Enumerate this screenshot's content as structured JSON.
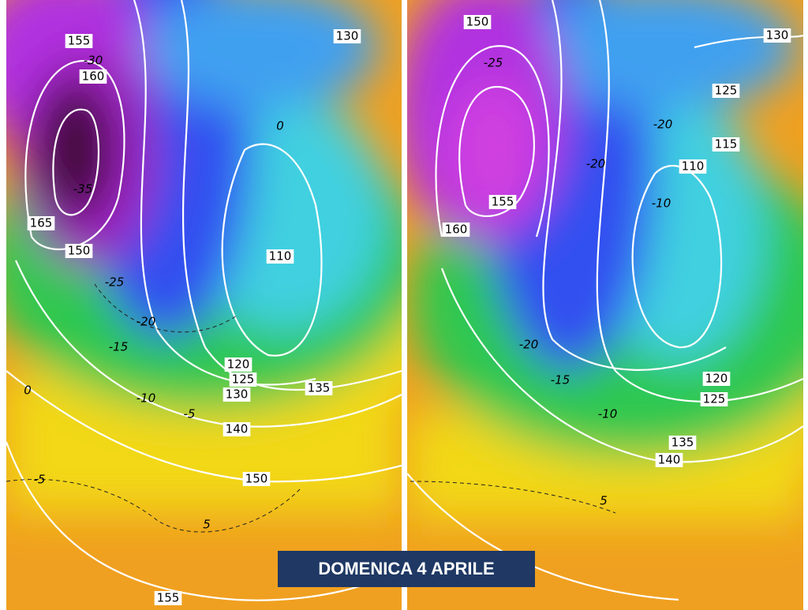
{
  "caption": "DOMENICA 4 APRILE",
  "panels": [
    {
      "box_labels": [
        "155",
        "160",
        "165",
        "150",
        "110",
        "120",
        "125",
        "130",
        "135",
        "140",
        "150",
        "155",
        "130"
      ],
      "dashed_labels": [
        "-30",
        "-35",
        "-25",
        "-20",
        "-15",
        "-10",
        "-5",
        "0",
        "-5",
        "5",
        "0"
      ]
    },
    {
      "box_labels": [
        "150",
        "130",
        "125",
        "115",
        "110",
        "155",
        "160",
        "120",
        "125",
        "135",
        "140"
      ],
      "dashed_labels": [
        "-25",
        "-20",
        "-20",
        "-10",
        "-20",
        "-15",
        "-10",
        "5"
      ]
    }
  ]
}
